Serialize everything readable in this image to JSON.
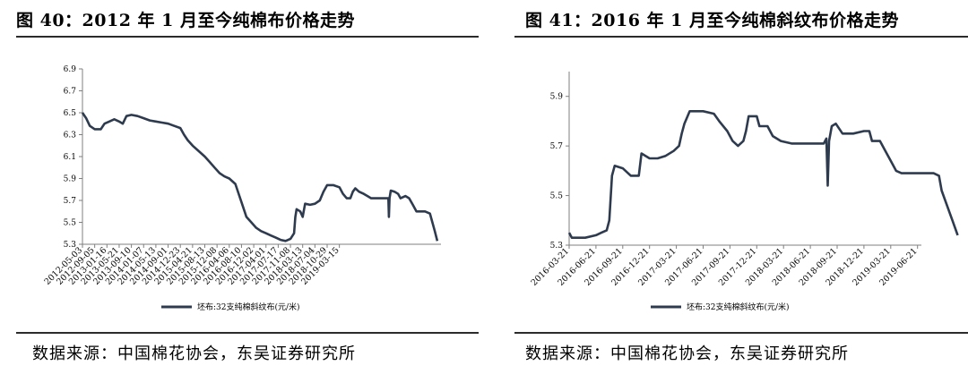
{
  "left": {
    "title": "图 40：2012 年 1 月至今纯棉布价格走势",
    "source": "数据来源：中国棉花协会，东吴证券研究所",
    "chart_data": {
      "type": "line",
      "ylim": [
        5.3,
        6.9
      ],
      "yticks": [
        "6.9",
        "6.7",
        "6.5",
        "6.3",
        "6.1",
        "5.9",
        "5.7",
        "5.5",
        "5.3"
      ],
      "xticks": [
        "2012-05-03",
        "2012-09-05",
        "2013-01-16",
        "2013-05-21",
        "2013-09-10",
        "2014-01-07",
        "2014-05-13",
        "2014-09-01",
        "2014-12-23",
        "2015-04-21",
        "2015-08-13",
        "2015-12-08",
        "2016-04-06",
        "2016-08-10",
        "2016-12-02",
        "2017-04-01",
        "2017-07-17",
        "2017-11-08",
        "2018-03-13",
        "2018-07-04",
        "2018-10-29",
        "2019-03-15"
      ],
      "legend": "坯布:32支纯棉斜纹布(元/米)",
      "series": [
        {
          "name": "坯布:32支纯棉斜纹布(元/米)",
          "color": "#2e3b4e",
          "points": [
            [
              0,
              6.5
            ],
            [
              0.3,
              6.45
            ],
            [
              0.6,
              6.38
            ],
            [
              1.0,
              6.35
            ],
            [
              1.5,
              6.35
            ],
            [
              1.8,
              6.4
            ],
            [
              2.2,
              6.42
            ],
            [
              2.6,
              6.44
            ],
            [
              3.0,
              6.42
            ],
            [
              3.3,
              6.4
            ],
            [
              3.6,
              6.47
            ],
            [
              4.0,
              6.48
            ],
            [
              4.5,
              6.47
            ],
            [
              5.0,
              6.45
            ],
            [
              5.5,
              6.43
            ],
            [
              6.0,
              6.42
            ],
            [
              6.5,
              6.41
            ],
            [
              7.0,
              6.4
            ],
            [
              7.5,
              6.38
            ],
            [
              8.0,
              6.36
            ],
            [
              8.3,
              6.3
            ],
            [
              8.6,
              6.25
            ],
            [
              9.0,
              6.2
            ],
            [
              9.5,
              6.15
            ],
            [
              10.0,
              6.1
            ],
            [
              10.4,
              6.05
            ],
            [
              10.8,
              6.0
            ],
            [
              11.2,
              5.95
            ],
            [
              11.6,
              5.92
            ],
            [
              12.0,
              5.9
            ],
            [
              12.5,
              5.85
            ],
            [
              12.8,
              5.75
            ],
            [
              13.1,
              5.65
            ],
            [
              13.4,
              5.55
            ],
            [
              13.8,
              5.5
            ],
            [
              14.2,
              5.45
            ],
            [
              14.6,
              5.42
            ],
            [
              15.0,
              5.4
            ],
            [
              15.4,
              5.38
            ],
            [
              15.8,
              5.36
            ],
            [
              16.2,
              5.34
            ],
            [
              16.6,
              5.33
            ],
            [
              17.0,
              5.35
            ],
            [
              17.3,
              5.4
            ],
            [
              17.4,
              5.55
            ],
            [
              17.5,
              5.62
            ],
            [
              17.8,
              5.6
            ],
            [
              18.0,
              5.55
            ],
            [
              18.2,
              5.67
            ],
            [
              18.6,
              5.66
            ],
            [
              19.0,
              5.67
            ],
            [
              19.4,
              5.7
            ],
            [
              19.7,
              5.78
            ],
            [
              20.0,
              5.84
            ],
            [
              20.5,
              5.84
            ],
            [
              21.0,
              5.82
            ],
            [
              21.3,
              5.76
            ],
            [
              21.6,
              5.72
            ],
            [
              21.9,
              5.72
            ],
            [
              22.1,
              5.78
            ],
            [
              22.3,
              5.81
            ],
            [
              22.6,
              5.78
            ],
            [
              23.0,
              5.76
            ],
            [
              23.3,
              5.74
            ],
            [
              23.6,
              5.72
            ],
            [
              24.0,
              5.72
            ],
            [
              24.4,
              5.72
            ],
            [
              24.8,
              5.72
            ],
            [
              25.0,
              5.72
            ],
            [
              25.05,
              5.55
            ],
            [
              25.1,
              5.72
            ],
            [
              25.2,
              5.79
            ],
            [
              25.5,
              5.78
            ],
            [
              25.8,
              5.76
            ],
            [
              26.0,
              5.72
            ],
            [
              26.4,
              5.74
            ],
            [
              26.7,
              5.72
            ],
            [
              27.0,
              5.66
            ],
            [
              27.3,
              5.6
            ],
            [
              27.7,
              5.6
            ],
            [
              28.0,
              5.6
            ],
            [
              28.4,
              5.58
            ],
            [
              28.6,
              5.5
            ],
            [
              28.8,
              5.42
            ],
            [
              29.0,
              5.33
            ]
          ]
        }
      ]
    }
  },
  "right": {
    "title": "图 41：2016 年 1 月至今纯棉斜纹布价格走势",
    "source": "数据来源：中国棉花协会，东吴证券研究所",
    "chart_data": {
      "type": "line",
      "ylim": [
        5.3,
        6.0
      ],
      "yticks": [
        "5.9",
        "5.7",
        "5.5",
        "5.3"
      ],
      "xticks": [
        "2016-03-21",
        "2016-06-21",
        "2016-09-21",
        "2016-12-21",
        "2017-03-21",
        "2017-06-21",
        "2017-09-21",
        "2017-12-21",
        "2018-03-21",
        "2018-06-21",
        "2018-09-21",
        "2018-12-21",
        "2019-03-21",
        "2019-06-21"
      ],
      "legend": "坯布:32支纯棉斜纹布(元/米)",
      "series": [
        {
          "name": "坯布:32支纯棉斜纹布(元/米)",
          "color": "#2e3b4e",
          "points": [
            [
              0,
              5.35
            ],
            [
              0.1,
              5.33
            ],
            [
              0.6,
              5.33
            ],
            [
              1.0,
              5.34
            ],
            [
              1.2,
              5.35
            ],
            [
              1.4,
              5.36
            ],
            [
              1.5,
              5.4
            ],
            [
              1.6,
              5.58
            ],
            [
              1.7,
              5.62
            ],
            [
              2.0,
              5.61
            ],
            [
              2.3,
              5.58
            ],
            [
              2.6,
              5.58
            ],
            [
              2.7,
              5.67
            ],
            [
              3.0,
              5.65
            ],
            [
              3.3,
              5.65
            ],
            [
              3.6,
              5.66
            ],
            [
              3.9,
              5.68
            ],
            [
              4.1,
              5.7
            ],
            [
              4.2,
              5.75
            ],
            [
              4.3,
              5.79
            ],
            [
              4.5,
              5.84
            ],
            [
              5.0,
              5.84
            ],
            [
              5.4,
              5.83
            ],
            [
              5.6,
              5.8
            ],
            [
              5.9,
              5.76
            ],
            [
              6.1,
              5.72
            ],
            [
              6.3,
              5.7
            ],
            [
              6.5,
              5.72
            ],
            [
              6.6,
              5.76
            ],
            [
              6.7,
              5.82
            ],
            [
              7.0,
              5.82
            ],
            [
              7.1,
              5.78
            ],
            [
              7.4,
              5.78
            ],
            [
              7.6,
              5.74
            ],
            [
              7.9,
              5.72
            ],
            [
              8.3,
              5.71
            ],
            [
              8.8,
              5.71
            ],
            [
              9.5,
              5.71
            ],
            [
              9.6,
              5.73
            ],
            [
              9.65,
              5.54
            ],
            [
              9.7,
              5.72
            ],
            [
              9.8,
              5.78
            ],
            [
              9.95,
              5.79
            ],
            [
              10.2,
              5.75
            ],
            [
              10.6,
              5.75
            ],
            [
              11.0,
              5.76
            ],
            [
              11.2,
              5.76
            ],
            [
              11.3,
              5.72
            ],
            [
              11.6,
              5.72
            ],
            [
              11.8,
              5.68
            ],
            [
              12.0,
              5.64
            ],
            [
              12.2,
              5.6
            ],
            [
              12.4,
              5.59
            ],
            [
              13.0,
              5.59
            ],
            [
              13.6,
              5.59
            ],
            [
              13.8,
              5.58
            ],
            [
              13.9,
              5.52
            ],
            [
              14.1,
              5.46
            ],
            [
              14.3,
              5.4
            ],
            [
              14.5,
              5.34
            ]
          ]
        }
      ]
    }
  }
}
